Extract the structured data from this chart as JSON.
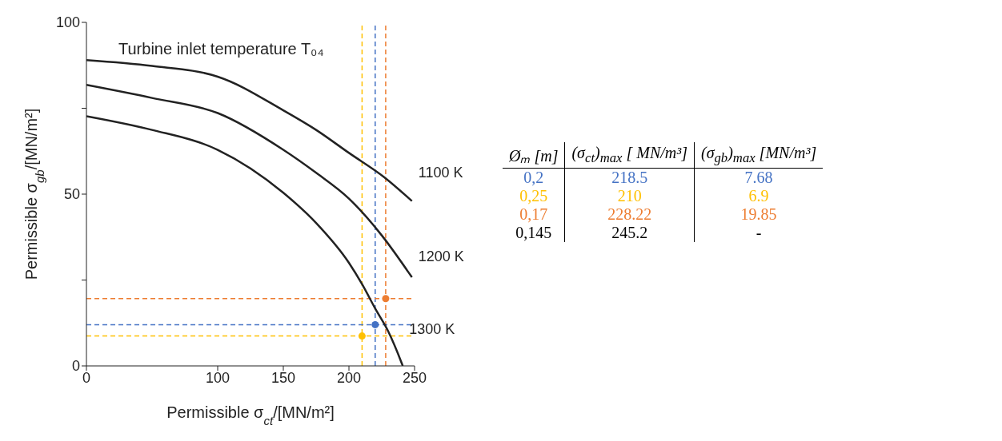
{
  "chart_data": [
    {
      "type": "line",
      "title": "Turbine inlet temperature T₀₄",
      "xlabel": "Permissible σ$_{ct}$/[MN/m²]",
      "ylabel": "Permissible σ$_{gb}$/[MN/m²]",
      "xlim": [
        0,
        250
      ],
      "xticks": [
        0,
        100,
        150,
        200,
        250
      ],
      "ylim": [
        0,
        100
      ],
      "yticks": [
        0,
        {
          "value": 25,
          "label": null
        },
        50,
        {
          "value": 75,
          "label": null
        },
        100
      ],
      "marker": "none",
      "line_style": "solid",
      "series": [
        {
          "name": "1100 K",
          "color": "#222222",
          "x": [
            0,
            50,
            100,
            150,
            175,
            200,
            227,
            248
          ],
          "values": [
            89,
            87.3,
            84.2,
            74.4,
            68.7,
            62,
            54.9,
            48
          ]
        },
        {
          "name": "1200 K",
          "color": "#222222",
          "x": [
            0,
            50,
            100,
            150,
            175,
            200,
            225,
            248
          ],
          "values": [
            81.8,
            78,
            73.6,
            62.9,
            56.2,
            48.7,
            38,
            25.8
          ]
        },
        {
          "name": "1300 K",
          "color": "#222222",
          "x": [
            0,
            50,
            100,
            150,
            175,
            200,
            210,
            220,
            230,
            240,
            241
          ],
          "values": [
            72.7,
            68.7,
            62.9,
            50.4,
            41.6,
            30,
            23.8,
            16.7,
            10,
            1,
            0
          ]
        },
        {
          "type": "scatter",
          "marker": "circle",
          "x": [
            220,
            210,
            228
          ],
          "values": [
            12,
            8.7,
            19.6
          ],
          "colors": [
            "#4472c4",
            "#ffc000",
            "#ed7d31"
          ]
        }
      ],
      "ref_lines": [
        {
          "axis": "x",
          "value": 210,
          "color": "#ffc000",
          "line_style": "dashed"
        },
        {
          "axis": "x",
          "value": 220,
          "color": "#4472c4",
          "line_style": "dashed"
        },
        {
          "axis": "x",
          "value": 228,
          "color": "#ed7d31",
          "line_style": "dashed"
        },
        {
          "axis": "y",
          "value": 19.6,
          "color": "#ed7d31",
          "line_style": "dashed"
        },
        {
          "axis": "y",
          "value": 12,
          "color": "#4472c4",
          "line_style": "dashed"
        },
        {
          "axis": "y",
          "value": 8.7,
          "color": "#ffc000",
          "line_style": "dashed"
        }
      ]
    },
    {
      "type": "other",
      "categories": [
        "Øₘ [m]",
        "(σ$_{ct}$)$_{max}$ [ MN/m³]",
        "(σ$_{gb}$)$_{max}$ [MN/m³]"
      ],
      "cell_labels": [
        [
          "0,2",
          "218.5",
          "7.68"
        ],
        [
          "0,25",
          "210",
          "6.9"
        ],
        [
          "0,17",
          "228.22",
          "19.85"
        ],
        [
          "0,145",
          "245.2",
          "-"
        ]
      ],
      "colors": [
        "#4472c4",
        "#ffc000",
        "#ed7d31",
        "#000000"
      ]
    }
  ]
}
